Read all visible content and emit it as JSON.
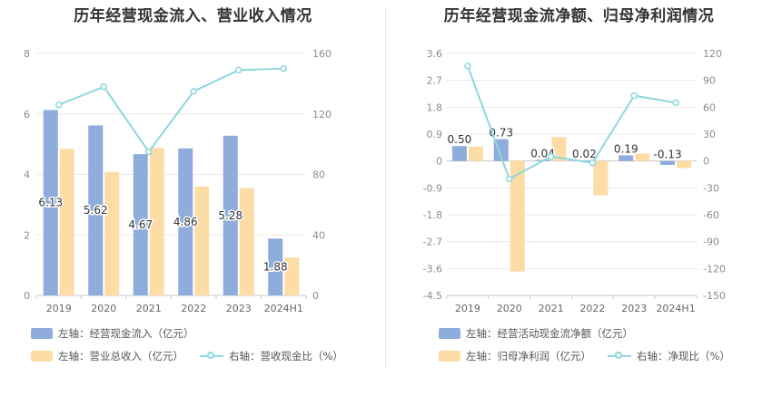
{
  "chart_data": [
    {
      "type": "bar",
      "title": "历年经营现金流入、营业收入情况",
      "categories": [
        "2019",
        "2020",
        "2021",
        "2022",
        "2023",
        "2024H1"
      ],
      "left_axis": {
        "min": 0,
        "max": 8,
        "ticks": [
          "0",
          "2",
          "4",
          "6",
          "8"
        ]
      },
      "right_axis": {
        "min": 0,
        "max": 160,
        "ticks": [
          "0",
          "40",
          "80",
          "120",
          "160"
        ]
      },
      "series": [
        {
          "name": "左轴：经营现金流入（亿元）",
          "axis": "left",
          "kind": "bar",
          "color": "#8eacdc",
          "values": [
            6.13,
            5.62,
            4.67,
            4.86,
            5.28,
            1.88
          ],
          "labels": [
            "6.13",
            "5.62",
            "4.67",
            "4.86",
            "5.28",
            "1.88"
          ]
        },
        {
          "name": "左轴：营业总收入（亿元）",
          "axis": "left",
          "kind": "bar",
          "color": "#fedca6",
          "values": [
            4.85,
            4.08,
            4.88,
            3.6,
            3.55,
            1.25
          ]
        },
        {
          "name": "右轴：营收现金比（%）",
          "axis": "right",
          "kind": "line",
          "color": "#8dd8dc",
          "values": [
            126,
            138,
            95,
            135,
            149,
            150
          ]
        }
      ],
      "legend": [
        "左轴：经营现金流入（亿元）",
        "左轴：营业总收入（亿元）",
        "右轴：营收现金比（%）"
      ]
    },
    {
      "type": "bar",
      "title": "历年经营现金流净额、归母净利润情况",
      "categories": [
        "2019",
        "2020",
        "2021",
        "2022",
        "2023",
        "2024H1"
      ],
      "left_axis": {
        "min": -4.5,
        "max": 3.6,
        "ticks": [
          "-4.5",
          "-3.6",
          "-2.7",
          "-1.8",
          "-0.9",
          "0",
          "0.9",
          "1.8",
          "2.7",
          "3.6"
        ]
      },
      "right_axis": {
        "min": -150,
        "max": 120,
        "ticks": [
          "-150",
          "-120",
          "-90",
          "-60",
          "-30",
          "0",
          "30",
          "60",
          "90",
          "120"
        ]
      },
      "series": [
        {
          "name": "左轴：经营活动现金流净额（亿元）",
          "axis": "left",
          "kind": "bar",
          "color": "#8eacdc",
          "values": [
            0.5,
            0.73,
            0.04,
            0.02,
            0.19,
            -0.13
          ],
          "labels": [
            "0.50",
            "0.73",
            "0.04",
            "0.02",
            "0.19",
            "-0.13"
          ]
        },
        {
          "name": "左轴：归母净利润（亿元）",
          "axis": "left",
          "kind": "bar",
          "color": "#fedca6",
          "values": [
            0.48,
            -3.7,
            0.8,
            -1.15,
            0.25,
            -0.24
          ]
        },
        {
          "name": "右轴：净现比（%）",
          "axis": "right",
          "kind": "line",
          "color": "#8dd8dc",
          "values": [
            106,
            -20,
            5,
            -2,
            73,
            65
          ]
        }
      ],
      "legend": [
        "左轴：经营活动现金流净额（亿元）",
        "左轴：归母净利润（亿元）",
        "右轴：净现比（%）"
      ]
    }
  ]
}
